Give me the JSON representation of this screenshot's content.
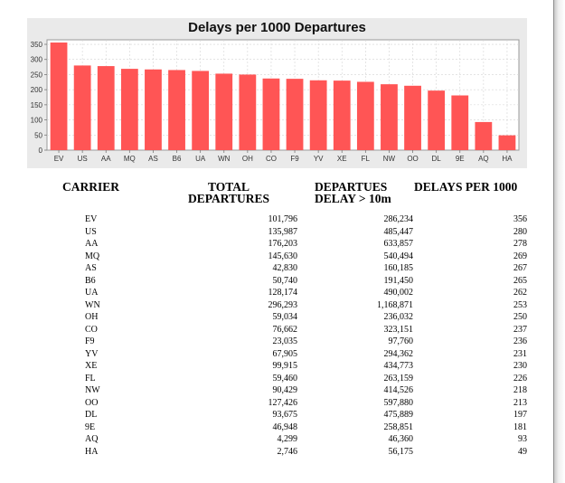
{
  "chart_data": {
    "type": "bar",
    "title": "Delays per 1000 Departures",
    "xlabel": "",
    "ylabel": "",
    "ylim": [
      0,
      365
    ],
    "yticks": [
      0,
      50,
      100,
      150,
      200,
      250,
      300,
      350
    ],
    "grid": true,
    "categories": [
      "EV",
      "US",
      "AA",
      "MQ",
      "AS",
      "B6",
      "UA",
      "WN",
      "OH",
      "CO",
      "F9",
      "YV",
      "XE",
      "FL",
      "NW",
      "OO",
      "DL",
      "9E",
      "AQ",
      "HA"
    ],
    "values": [
      356,
      280,
      278,
      269,
      267,
      265,
      262,
      253,
      250,
      237,
      236,
      231,
      230,
      226,
      218,
      213,
      197,
      181,
      93,
      49
    ],
    "bar_color": "#ff5555"
  },
  "table": {
    "headers": {
      "carrier": "CARRIER",
      "total": "TOTAL\nDEPARTURES",
      "delay": "DEPARTUES\nDELAY > 10m",
      "rate": "DELAYS PER 1000"
    },
    "rows": [
      {
        "carrier": "EV",
        "total": "101,796",
        "delay": "286,234",
        "rate": "356"
      },
      {
        "carrier": "US",
        "total": "135,987",
        "delay": "485,447",
        "rate": "280"
      },
      {
        "carrier": "AA",
        "total": "176,203",
        "delay": "633,857",
        "rate": "278"
      },
      {
        "carrier": "MQ",
        "total": "145,630",
        "delay": "540,494",
        "rate": "269"
      },
      {
        "carrier": "AS",
        "total": "42,830",
        "delay": "160,185",
        "rate": "267"
      },
      {
        "carrier": "B6",
        "total": "50,740",
        "delay": "191,450",
        "rate": "265"
      },
      {
        "carrier": "UA",
        "total": "128,174",
        "delay": "490,002",
        "rate": "262"
      },
      {
        "carrier": "WN",
        "total": "296,293",
        "delay": "1,168,871",
        "rate": "253"
      },
      {
        "carrier": "OH",
        "total": "59,034",
        "delay": "236,032",
        "rate": "250"
      },
      {
        "carrier": "CO",
        "total": "76,662",
        "delay": "323,151",
        "rate": "237"
      },
      {
        "carrier": "F9",
        "total": "23,035",
        "delay": "97,760",
        "rate": "236"
      },
      {
        "carrier": "YV",
        "total": "67,905",
        "delay": "294,362",
        "rate": "231"
      },
      {
        "carrier": "XE",
        "total": "99,915",
        "delay": "434,773",
        "rate": "230"
      },
      {
        "carrier": "FL",
        "total": "59,460",
        "delay": "263,159",
        "rate": "226"
      },
      {
        "carrier": "NW",
        "total": "90,429",
        "delay": "414,526",
        "rate": "218"
      },
      {
        "carrier": "OO",
        "total": "127,426",
        "delay": "597,880",
        "rate": "213"
      },
      {
        "carrier": "DL",
        "total": "93,675",
        "delay": "475,889",
        "rate": "197"
      },
      {
        "carrier": "9E",
        "total": "46,948",
        "delay": "258,851",
        "rate": "181"
      },
      {
        "carrier": "AQ",
        "total": "4,299",
        "delay": "46,360",
        "rate": "93"
      },
      {
        "carrier": "HA",
        "total": "2,746",
        "delay": "56,175",
        "rate": "49"
      }
    ]
  }
}
